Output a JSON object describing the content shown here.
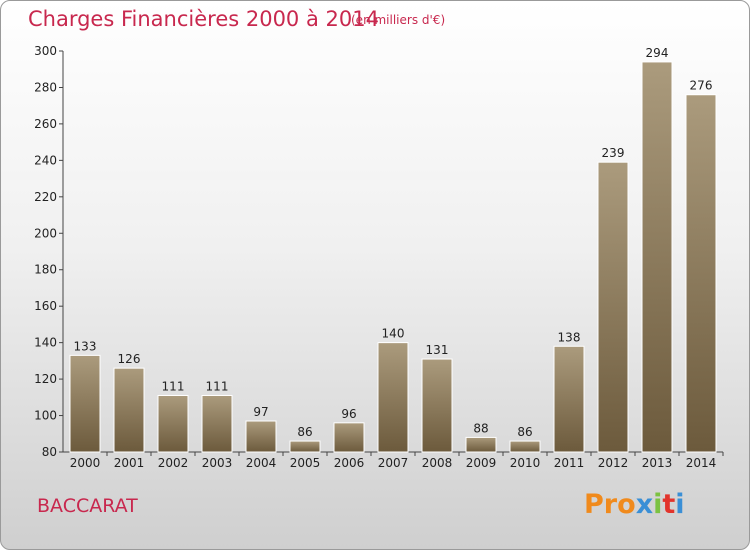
{
  "header": {
    "title": "Charges Financières 2000 à 2014",
    "subtitle": "(en milliers d'€)"
  },
  "footer": {
    "place": "BACCARAT",
    "logo": "Proxiti",
    "logo_colors": [
      "#f08a1c",
      "#f08a1c",
      "#f08a1c",
      "#3a8fd6",
      "#7cc242",
      "#e2342c",
      "#3a8fd6"
    ]
  },
  "chart_data": {
    "type": "bar",
    "title": "Charges Financières 2000 à 2014",
    "subtitle": "(en milliers d'€)",
    "categories": [
      "2000",
      "2001",
      "2002",
      "2003",
      "2004",
      "2005",
      "2006",
      "2007",
      "2008",
      "2009",
      "2010",
      "2011",
      "2012",
      "2013",
      "2014"
    ],
    "values": [
      133,
      126,
      111,
      111,
      97,
      86,
      96,
      140,
      131,
      88,
      86,
      138,
      239,
      294,
      276
    ],
    "ylim": [
      80,
      300
    ],
    "yticks": [
      80,
      100,
      120,
      140,
      160,
      180,
      200,
      220,
      240,
      260,
      280,
      300
    ],
    "grid": false,
    "colors": {
      "bar_top": "#ab9b7d",
      "bar_bottom": "#6c5a3c",
      "bar_edge": "#ffffff",
      "axis": "#444444"
    }
  }
}
